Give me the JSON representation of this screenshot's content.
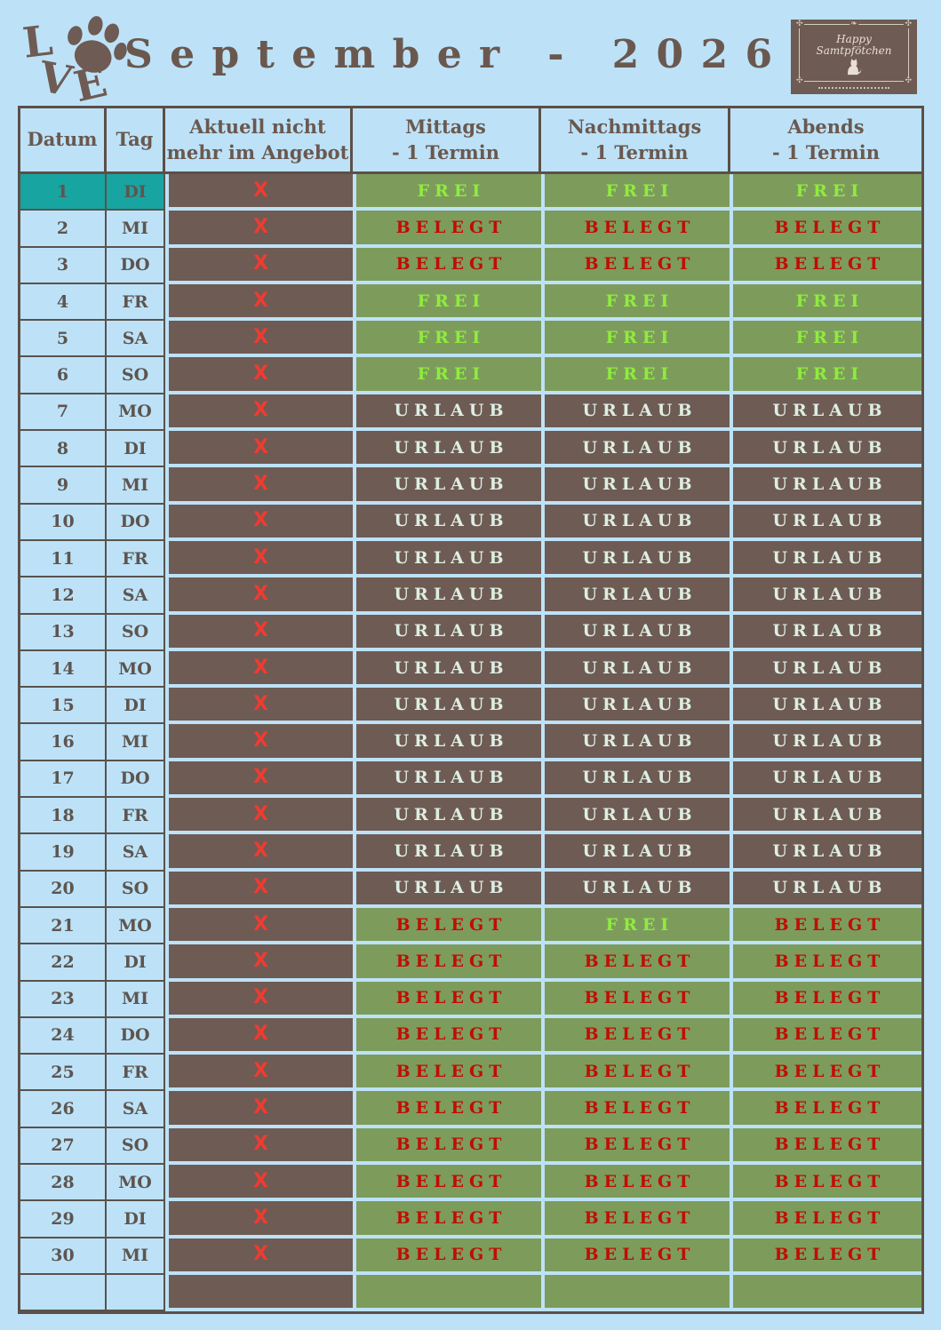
{
  "page": {
    "title": "September - 2026",
    "background": "#BDE2F8"
  },
  "logos": {
    "love": {
      "l": "L",
      "v": "V",
      "e": "E",
      "icon": "paw-icon"
    },
    "brand": {
      "line1": "Happy",
      "line2": "Samtpfötchen",
      "icon": "cat-icon"
    }
  },
  "table": {
    "headers": {
      "datum": "Datum",
      "tag": "Tag",
      "offer_line1": "Aktuell nicht",
      "offer_line2": "mehr im Angebot",
      "mittags_line1": "Mittags",
      "mittags_line2": "- 1 Termin",
      "nachmittags_line1": "Nachmittags",
      "nachmittags_line2": "- 1 Termin",
      "abends_line1": "Abends",
      "abends_line2": "- 1 Termin"
    },
    "x_mark": "X",
    "rows": [
      {
        "date": "1",
        "day": "DI",
        "x": true,
        "highlight": true,
        "slots": [
          "FREI",
          "FREI",
          "FREI"
        ]
      },
      {
        "date": "2",
        "day": "MI",
        "x": true,
        "highlight": false,
        "slots": [
          "BELEGT",
          "BELEGT",
          "BELEGT"
        ]
      },
      {
        "date": "3",
        "day": "DO",
        "x": true,
        "highlight": false,
        "slots": [
          "BELEGT",
          "BELEGT",
          "BELEGT"
        ]
      },
      {
        "date": "4",
        "day": "FR",
        "x": true,
        "highlight": false,
        "slots": [
          "FREI",
          "FREI",
          "FREI"
        ]
      },
      {
        "date": "5",
        "day": "SA",
        "x": true,
        "highlight": false,
        "slots": [
          "FREI",
          "FREI",
          "FREI"
        ]
      },
      {
        "date": "6",
        "day": "SO",
        "x": true,
        "highlight": false,
        "slots": [
          "FREI",
          "FREI",
          "FREI"
        ]
      },
      {
        "date": "7",
        "day": "MO",
        "x": true,
        "highlight": false,
        "slots": [
          "URLAUB",
          "URLAUB",
          "URLAUB"
        ]
      },
      {
        "date": "8",
        "day": "DI",
        "x": true,
        "highlight": false,
        "slots": [
          "URLAUB",
          "URLAUB",
          "URLAUB"
        ]
      },
      {
        "date": "9",
        "day": "MI",
        "x": true,
        "highlight": false,
        "slots": [
          "URLAUB",
          "URLAUB",
          "URLAUB"
        ]
      },
      {
        "date": "10",
        "day": "DO",
        "x": true,
        "highlight": false,
        "slots": [
          "URLAUB",
          "URLAUB",
          "URLAUB"
        ]
      },
      {
        "date": "11",
        "day": "FR",
        "x": true,
        "highlight": false,
        "slots": [
          "URLAUB",
          "URLAUB",
          "URLAUB"
        ]
      },
      {
        "date": "12",
        "day": "SA",
        "x": true,
        "highlight": false,
        "slots": [
          "URLAUB",
          "URLAUB",
          "URLAUB"
        ]
      },
      {
        "date": "13",
        "day": "SO",
        "x": true,
        "highlight": false,
        "slots": [
          "URLAUB",
          "URLAUB",
          "URLAUB"
        ]
      },
      {
        "date": "14",
        "day": "MO",
        "x": true,
        "highlight": false,
        "slots": [
          "URLAUB",
          "URLAUB",
          "URLAUB"
        ]
      },
      {
        "date": "15",
        "day": "DI",
        "x": true,
        "highlight": false,
        "slots": [
          "URLAUB",
          "URLAUB",
          "URLAUB"
        ]
      },
      {
        "date": "16",
        "day": "MI",
        "x": true,
        "highlight": false,
        "slots": [
          "URLAUB",
          "URLAUB",
          "URLAUB"
        ]
      },
      {
        "date": "17",
        "day": "DO",
        "x": true,
        "highlight": false,
        "slots": [
          "URLAUB",
          "URLAUB",
          "URLAUB"
        ]
      },
      {
        "date": "18",
        "day": "FR",
        "x": true,
        "highlight": false,
        "slots": [
          "URLAUB",
          "URLAUB",
          "URLAUB"
        ]
      },
      {
        "date": "19",
        "day": "SA",
        "x": true,
        "highlight": false,
        "slots": [
          "URLAUB",
          "URLAUB",
          "URLAUB"
        ]
      },
      {
        "date": "20",
        "day": "SO",
        "x": true,
        "highlight": false,
        "slots": [
          "URLAUB",
          "URLAUB",
          "URLAUB"
        ]
      },
      {
        "date": "21",
        "day": "MO",
        "x": true,
        "highlight": false,
        "slots": [
          "BELEGT",
          "FREI",
          "BELEGT"
        ]
      },
      {
        "date": "22",
        "day": "DI",
        "x": true,
        "highlight": false,
        "slots": [
          "BELEGT",
          "BELEGT",
          "BELEGT"
        ]
      },
      {
        "date": "23",
        "day": "MI",
        "x": true,
        "highlight": false,
        "slots": [
          "BELEGT",
          "BELEGT",
          "BELEGT"
        ]
      },
      {
        "date": "24",
        "day": "DO",
        "x": true,
        "highlight": false,
        "slots": [
          "BELEGT",
          "BELEGT",
          "BELEGT"
        ]
      },
      {
        "date": "25",
        "day": "FR",
        "x": true,
        "highlight": false,
        "slots": [
          "BELEGT",
          "BELEGT",
          "BELEGT"
        ]
      },
      {
        "date": "26",
        "day": "SA",
        "x": true,
        "highlight": false,
        "slots": [
          "BELEGT",
          "BELEGT",
          "BELEGT"
        ]
      },
      {
        "date": "27",
        "day": "SO",
        "x": true,
        "highlight": false,
        "slots": [
          "BELEGT",
          "BELEGT",
          "BELEGT"
        ]
      },
      {
        "date": "28",
        "day": "MO",
        "x": true,
        "highlight": false,
        "slots": [
          "BELEGT",
          "BELEGT",
          "BELEGT"
        ]
      },
      {
        "date": "29",
        "day": "DI",
        "x": true,
        "highlight": false,
        "slots": [
          "BELEGT",
          "BELEGT",
          "BELEGT"
        ]
      },
      {
        "date": "30",
        "day": "MI",
        "x": true,
        "highlight": false,
        "slots": [
          "BELEGT",
          "BELEGT",
          "BELEGT"
        ]
      },
      {
        "date": "",
        "day": "",
        "x": false,
        "highlight": false,
        "slots": [
          "",
          "",
          ""
        ]
      }
    ]
  },
  "colors": {
    "background": "#BDE2F8",
    "brown": "#6E5B53",
    "border_dark": "#5C4F48",
    "highlight_teal": "#18A4A0",
    "slot_green": "#7D9C5C",
    "free_text": "#8FEC3E",
    "booked_text": "#C00D04",
    "vacation_text": "#DDEEE3",
    "x_red": "#EF3B31",
    "heading_text": "#6A584F"
  }
}
